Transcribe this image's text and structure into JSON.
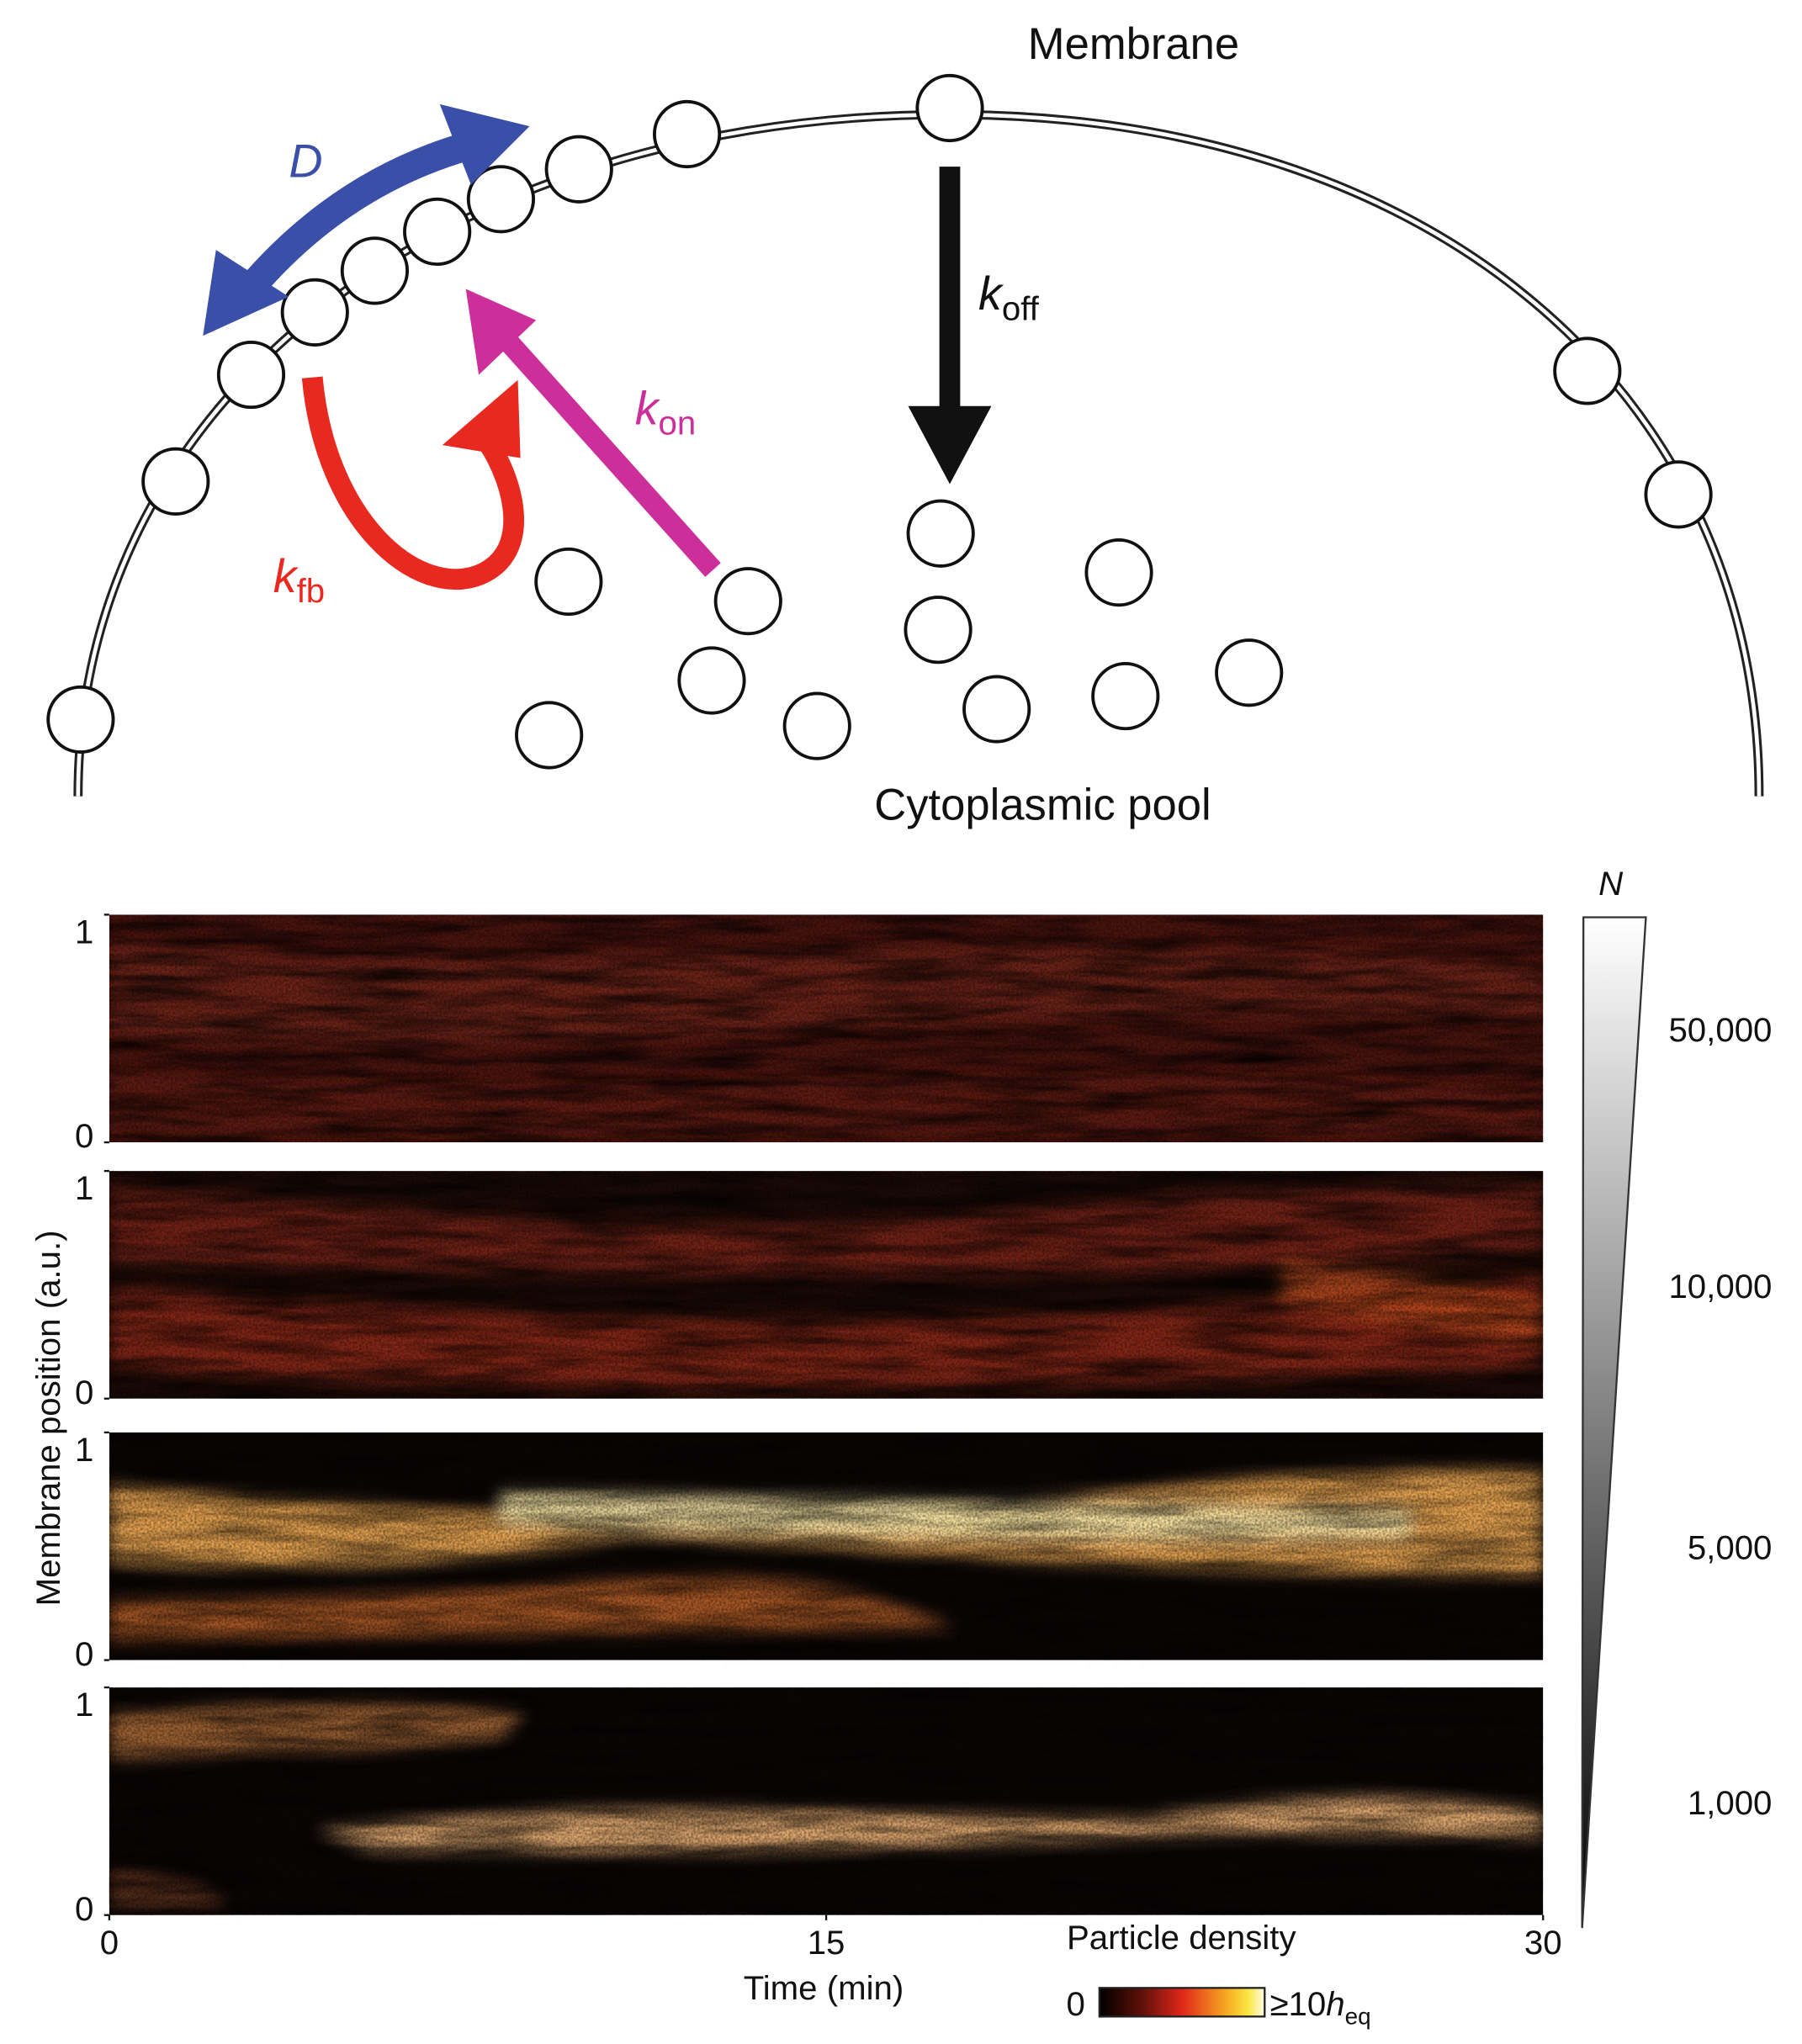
{
  "diagram": {
    "membrane_label": "Membrane",
    "pool_label": "Cytoplasmic pool",
    "diffusion_label": "D",
    "k_off": {
      "symbol": "k",
      "subscript": "off"
    },
    "k_on": {
      "symbol": "k",
      "subscript": "on"
    },
    "k_fb": {
      "symbol": "k",
      "subscript": "fb"
    }
  },
  "chart_data": {
    "type": "heatmap",
    "xlabel": "Time (min)",
    "ylabel": "Membrane position (a.u.)",
    "xlim": [
      0,
      30
    ],
    "xticks": [
      0,
      15,
      30
    ],
    "ylim": [
      0,
      1
    ],
    "yticks": [
      0,
      1
    ],
    "size_scale": {
      "label": "N",
      "values": [
        {
          "value": 50000,
          "label": "50,000"
        },
        {
          "value": 10000,
          "label": "10,000"
        },
        {
          "value": 5000,
          "label": "5,000"
        },
        {
          "value": 1000,
          "label": "1,000"
        }
      ]
    },
    "colorbar": {
      "title": "Particle density",
      "min": 0,
      "max_label": {
        "prefix": "≥10",
        "symbol": "h",
        "subscript": "eq"
      }
    }
  }
}
